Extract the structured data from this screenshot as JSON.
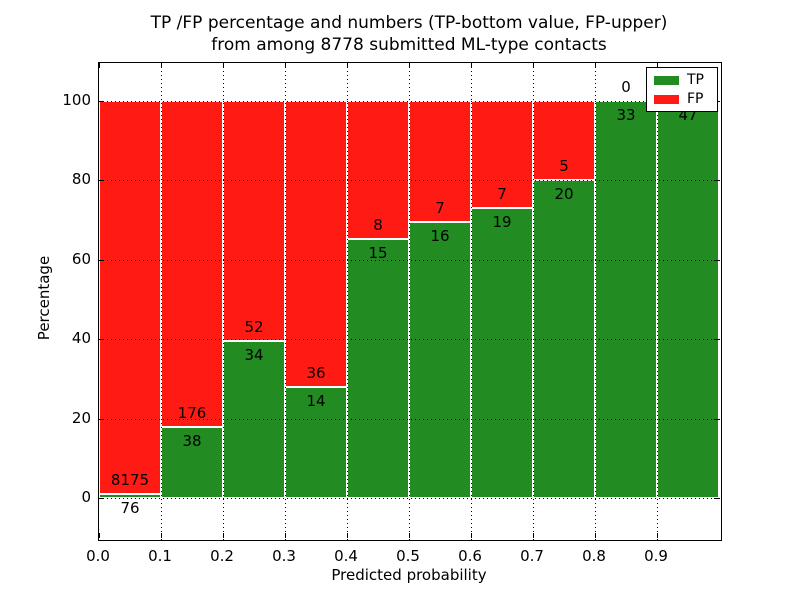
{
  "figure": {
    "title_line1": "TP /FP percentage and numbers (TP-bottom value, FP-upper)",
    "title_line2": "from among 8778 submitted ML-type contacts",
    "xlabel": "Predicted probability",
    "ylabel": "Percentage"
  },
  "chart_data": {
    "type": "bar",
    "stacked": true,
    "title": "TP /FP percentage and numbers (TP-bottom value, FP-upper) from among 8778 submitted ML-type contacts",
    "xlabel": "Predicted probability",
    "ylabel": "Percentage",
    "xlim": [
      0.0,
      1.0
    ],
    "ylim": [
      -10.6,
      109.6
    ],
    "x_tick_labels": [
      "0.0",
      "0.1",
      "0.2",
      "0.3",
      "0.4",
      "0.5",
      "0.6",
      "0.7",
      "0.8",
      "0.9"
    ],
    "y_tick_values": [
      0,
      20,
      40,
      60,
      80,
      100
    ],
    "grid": "dotted-both-axes",
    "legend_position": "upper-right",
    "legend": [
      {
        "name": "TP",
        "color": "#228b22"
      },
      {
        "name": "FP",
        "color": "#ff1a14"
      }
    ],
    "total_contacts": 8778,
    "bins": [
      "0.0-0.1",
      "0.1-0.2",
      "0.2-0.3",
      "0.3-0.4",
      "0.4-0.5",
      "0.5-0.6",
      "0.6-0.7",
      "0.7-0.8",
      "0.8-0.9",
      "0.9-1.0"
    ],
    "series": [
      {
        "name": "TP",
        "values": [
          76,
          38,
          34,
          14,
          15,
          16,
          19,
          20,
          33,
          47
        ]
      },
      {
        "name": "FP",
        "values": [
          8175,
          176,
          52,
          36,
          8,
          7,
          7,
          5,
          0,
          0
        ]
      }
    ],
    "tp_percent_of_bin": [
      0.92,
      17.76,
      39.53,
      28.0,
      65.22,
      69.57,
      73.08,
      80.0,
      100.0,
      100.0
    ],
    "fp_label_visible": [
      true,
      true,
      true,
      true,
      true,
      true,
      true,
      true,
      true,
      false
    ]
  }
}
